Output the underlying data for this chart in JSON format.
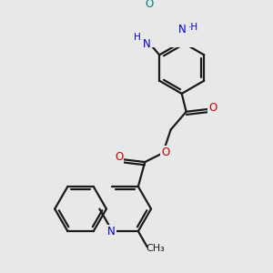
{
  "bg_color": "#e8e8e8",
  "bond_color": "#1a1a1a",
  "N_color": "#0000cc",
  "O_color": "#cc0000",
  "O_teal_color": "#008080",
  "line_width": 1.6,
  "font_size": 8.5,
  "fig_size": [
    3.0,
    3.0
  ],
  "dpi": 100,
  "xlim": [
    0,
    10
  ],
  "ylim": [
    0,
    10
  ]
}
